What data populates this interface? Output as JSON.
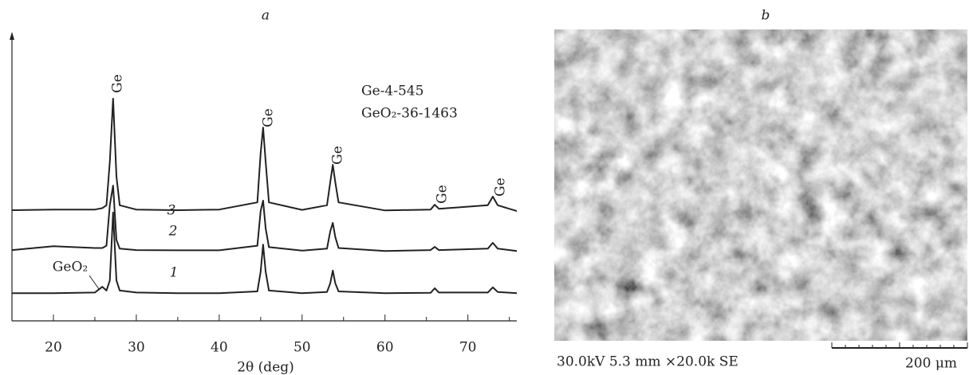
{
  "chart_data": {
    "type": "line",
    "title": "a",
    "xlabel": "2θ (deg)",
    "x": [
      15,
      20,
      25,
      25.9,
      26.4,
      26.8,
      27.2,
      27.6,
      28,
      30,
      35,
      40,
      44.6,
      45,
      45.3,
      45.6,
      46,
      50,
      53,
      53.4,
      53.7,
      54,
      54.4,
      60,
      65.5,
      66,
      66.5,
      72.4,
      73,
      73.6,
      75.9
    ],
    "series": [
      {
        "name": "1",
        "color": "#222222",
        "values": [
          9.6,
          9.6,
          9.8,
          11.8,
          10.5,
          14,
          37.5,
          14,
          10.5,
          9.8,
          9.6,
          9.6,
          10.2,
          17,
          26.4,
          17,
          10.5,
          9.6,
          10,
          13,
          17.4,
          13,
          10.2,
          9.6,
          9.7,
          11.3,
          9.8,
          9.8,
          11.6,
          10,
          9.6
        ]
      },
      {
        "name": "2",
        "color": "#222222",
        "values": [
          24.5,
          25.8,
          25.2,
          25.2,
          26,
          40,
          46.8,
          28,
          25,
          24.5,
          24.4,
          24.4,
          26,
          38,
          41.6,
          32,
          25.5,
          24.3,
          25,
          31,
          33.9,
          29,
          25.2,
          24.2,
          24.5,
          25.6,
          24.5,
          25,
          27,
          25,
          24.2
        ]
      },
      {
        "name": "3",
        "color": "#222222",
        "values": [
          38.3,
          38.5,
          38.5,
          39,
          40,
          55,
          76.9,
          50,
          40,
          38.5,
          38.3,
          38.5,
          41,
          58,
          66.9,
          55,
          41,
          38.4,
          40,
          48,
          54,
          48,
          41,
          38.2,
          38.5,
          40.2,
          38.8,
          40,
          43,
          40,
          38
        ]
      }
    ],
    "xlim": [
      15,
      75.9
    ],
    "ylim": [
      0,
      100
    ],
    "xticks": [
      20,
      30,
      40,
      50,
      60,
      70
    ],
    "peak_labels": [
      "Ge",
      "Ge",
      "Ge",
      "Ge",
      "Ge"
    ],
    "phase_label": "GeO₂",
    "references": [
      "Ge-4-545",
      "GeO₂-36-1463"
    ]
  },
  "image_panel": {
    "label": "b",
    "caption": "30.0kV 5.3 mm ×20.0k SE",
    "scale_bar": "200 μm"
  }
}
